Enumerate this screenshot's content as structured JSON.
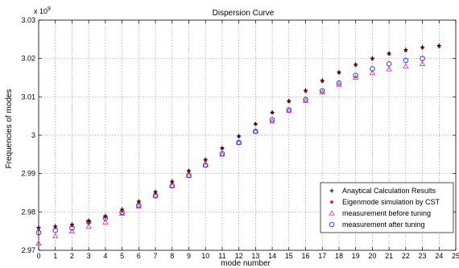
{
  "chart_data": {
    "type": "scatter",
    "title": "Dispersion Curve",
    "xlabel": "mode number",
    "ylabel": "Frequencies of modes",
    "y_multiplier": "x 10",
    "y_exponent": "9",
    "xlim": [
      0,
      25
    ],
    "ylim": [
      2.97,
      3.03
    ],
    "x_ticks": [
      0,
      1,
      2,
      3,
      4,
      5,
      6,
      7,
      8,
      9,
      10,
      11,
      12,
      13,
      14,
      15,
      16,
      17,
      18,
      19,
      20,
      21,
      22,
      23,
      24,
      25
    ],
    "x_tick_labels": [
      "0",
      "1",
      "2",
      "3",
      "4",
      "5",
      "6",
      "7",
      "8",
      "9",
      "10",
      "11",
      "12",
      "13",
      "14",
      "15",
      "16",
      "17",
      "18",
      "19",
      "20",
      "21",
      "22",
      "23",
      "24",
      "25"
    ],
    "y_ticks": [
      2.97,
      2.98,
      2.99,
      3.0,
      3.01,
      3.02,
      3.03
    ],
    "y_tick_labels": [
      "2.97",
      "2.98",
      "2.99",
      "3",
      "3.01",
      "3.02",
      "3.03"
    ],
    "grid": true,
    "legend_position": "bottom-right",
    "x": [
      0,
      1,
      2,
      3,
      4,
      5,
      6,
      7,
      8,
      9,
      10,
      11,
      12,
      13,
      14,
      15,
      16,
      17,
      18,
      19,
      20,
      21,
      22,
      23,
      24
    ],
    "series": [
      {
        "name": "Anaytical Calculation Results",
        "marker": "plus",
        "color": "#000000",
        "values": [
          2.976,
          2.9763,
          2.9768,
          2.9777,
          2.979,
          2.9807,
          2.9828,
          2.9853,
          2.988,
          2.9908,
          2.9937,
          2.9967,
          2.9998,
          3.003,
          3.006,
          3.009,
          3.0117,
          3.0143,
          3.0165,
          3.0185,
          3.0201,
          3.0214,
          3.0223,
          3.023,
          3.0234
        ]
      },
      {
        "name": "Eigenmode simulation by CST",
        "marker": "dot",
        "color": "#e8141b",
        "values": [
          2.9756,
          2.9759,
          2.9764,
          2.9773,
          2.9786,
          2.9803,
          2.9824,
          2.9849,
          2.9876,
          2.9905,
          2.9934,
          2.9965,
          2.9996,
          3.0028,
          3.0058,
          3.0087,
          3.0114,
          3.014,
          3.0162,
          3.0182,
          3.0198,
          3.0211,
          3.022,
          3.0227,
          3.0231
        ]
      },
      {
        "name": "measurement before tuning",
        "marker": "triangle",
        "color": "#e83aa4",
        "values": [
          2.9718,
          2.9737,
          2.975,
          2.9762,
          2.9773,
          2.9796,
          2.9815,
          2.9843,
          2.9868,
          2.9895,
          2.9922,
          2.995,
          2.9981,
          3.001,
          3.0036,
          3.0064,
          3.009,
          3.0112,
          3.0132,
          3.015,
          3.0162,
          3.0172,
          3.018,
          3.0186,
          null
        ]
      },
      {
        "name": "measurement after tuning",
        "marker": "circle",
        "color": "#1f2bd8",
        "values": [
          2.9746,
          2.9752,
          2.9758,
          2.9774,
          2.9784,
          2.9799,
          2.9817,
          2.9842,
          2.9868,
          2.9895,
          2.9922,
          2.9952,
          2.9981,
          3.001,
          3.004,
          3.0066,
          3.0093,
          3.0116,
          3.0136,
          3.0156,
          3.0173,
          3.0186,
          3.0195,
          3.02,
          null
        ]
      }
    ]
  }
}
